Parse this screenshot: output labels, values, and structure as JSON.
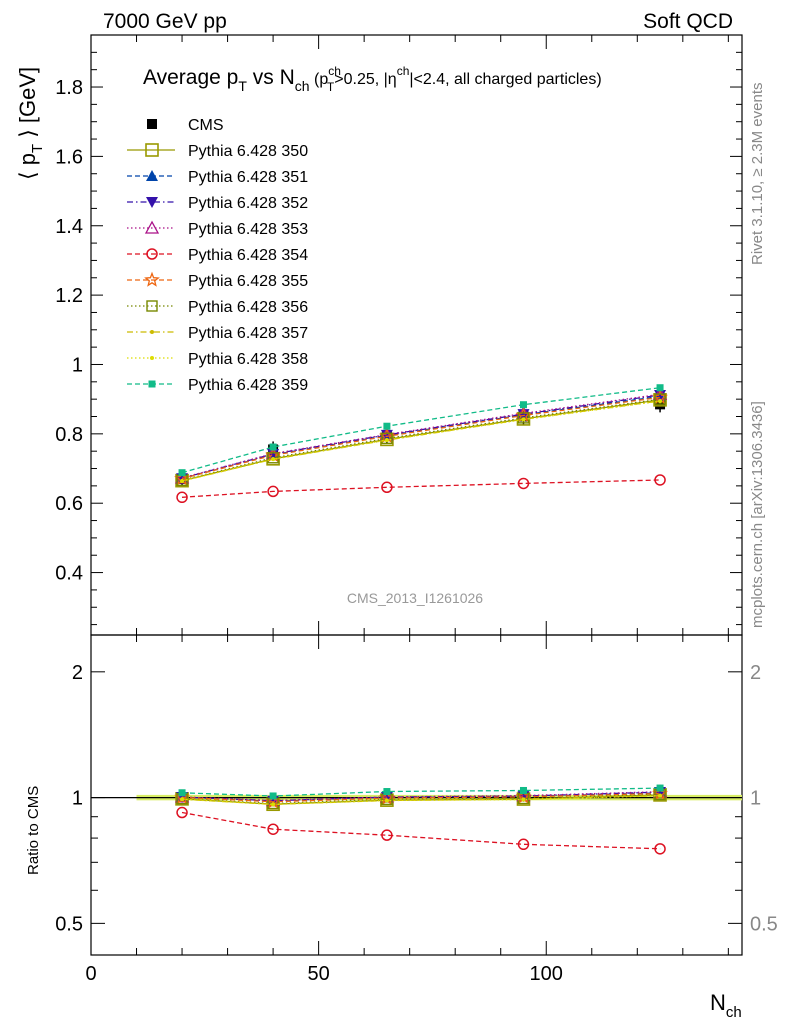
{
  "header": {
    "left": "7000 GeV pp",
    "right": "Soft QCD"
  },
  "side_labels": {
    "rivet": "Rivet 3.1.10, ≥ 2.3M events",
    "mcplots": "mcplots.cern.ch [arXiv:1306.3436]"
  },
  "analysis_id": "CMS_2013_I1261026",
  "title_parts": {
    "main": "Average p",
    "main_sub": "T",
    "vs": " vs N",
    "vs_sub": "ch",
    "cut_open": " (p",
    "cut_sup": "ch",
    "cut_sub": "T",
    "cut_mid": ">0.25, |η",
    "cut_sup2": "ch",
    "cut_end": "|<2.4, all charged particles)"
  },
  "ylabel_parts": {
    "open": "⟨ p",
    "sub": "T",
    "close": " ⟩ [GeV]"
  },
  "xlabel_parts": {
    "main": "N",
    "sub": "ch"
  },
  "ratio_ylabel": "Ratio to CMS",
  "colors": {
    "cms": "#000000",
    "p350": "#999900",
    "p351": "#0044aa",
    "p352": "#3311aa",
    "p353": "#aa1188",
    "p354": "#dd1122",
    "p355": "#ee6611",
    "p356": "#778800",
    "p357": "#ccbb00",
    "p358": "#dddd00",
    "p359": "#11bb88",
    "band": "#d8ee66"
  },
  "chart_data": [
    {
      "type": "line",
      "panel": "main",
      "ylim": [
        0.22,
        1.95
      ],
      "xlim": [
        0,
        143
      ],
      "yticks": [
        0.4,
        0.6,
        0.8,
        1.0,
        1.2,
        1.4,
        1.6,
        1.8
      ],
      "ytick_labels": [
        "0.4",
        "0.6",
        "0.8",
        "1",
        "1.2",
        "1.4",
        "1.6",
        "1.8"
      ],
      "x": [
        20,
        40,
        65,
        95,
        125
      ],
      "series": [
        {
          "name": "CMS",
          "key": "cms",
          "marker": "filled-square",
          "dash": "none",
          "values": [
            0.67,
            0.755,
            0.795,
            0.85,
            0.885
          ]
        },
        {
          "name": "Pythia 6.428 350",
          "key": "p350",
          "marker": "open-square",
          "dash": "solid",
          "values": [
            0.665,
            0.728,
            0.784,
            0.843,
            0.898
          ]
        },
        {
          "name": "Pythia 6.428 351",
          "key": "p351",
          "marker": "filled-triangle-up",
          "dash": "dash",
          "values": [
            0.671,
            0.74,
            0.795,
            0.855,
            0.908
          ]
        },
        {
          "name": "Pythia 6.428 352",
          "key": "p352",
          "marker": "filled-triangle-down",
          "dash": "dashdot",
          "values": [
            0.672,
            0.742,
            0.797,
            0.857,
            0.912
          ]
        },
        {
          "name": "Pythia 6.428 353",
          "key": "p353",
          "marker": "open-triangle-up",
          "dash": "dot",
          "values": [
            0.673,
            0.743,
            0.798,
            0.859,
            0.914
          ]
        },
        {
          "name": "Pythia 6.428 354",
          "key": "p354",
          "marker": "open-circle",
          "dash": "dash",
          "values": [
            0.617,
            0.634,
            0.646,
            0.657,
            0.667
          ]
        },
        {
          "name": "Pythia 6.428 355",
          "key": "p355",
          "marker": "open-star",
          "dash": "dash",
          "values": [
            0.671,
            0.738,
            0.793,
            0.853,
            0.905
          ]
        },
        {
          "name": "Pythia 6.428 356",
          "key": "p356",
          "marker": "open-square-small",
          "dash": "dot",
          "values": [
            0.666,
            0.731,
            0.787,
            0.846,
            0.9
          ]
        },
        {
          "name": "Pythia 6.428 357",
          "key": "p357",
          "marker": "small-dot",
          "dash": "dashdot",
          "values": [
            0.664,
            0.727,
            0.782,
            0.842,
            0.895
          ]
        },
        {
          "name": "Pythia 6.428 358",
          "key": "p358",
          "marker": "small-dot",
          "dash": "dot",
          "values": [
            0.664,
            0.727,
            0.782,
            0.841,
            0.894
          ]
        },
        {
          "name": "Pythia 6.428 359",
          "key": "p359",
          "marker": "filled-square-small",
          "dash": "dash",
          "values": [
            0.688,
            0.762,
            0.822,
            0.884,
            0.933
          ]
        }
      ]
    },
    {
      "type": "line",
      "panel": "ratio",
      "ylabel": "Ratio to CMS",
      "ylim": [
        0.42,
        2.45
      ],
      "yscale": "log",
      "xlim": [
        0,
        143
      ],
      "yticks": [
        0.5,
        1,
        2
      ],
      "ytick_labels": [
        "0.5",
        "1",
        "2"
      ],
      "xticks": [
        0,
        50,
        100
      ],
      "xtick_labels": [
        "0",
        "50",
        "100"
      ],
      "band": {
        "x": [
          10,
          143
        ],
        "low": 0.985,
        "high": 1.015
      },
      "x": [
        20,
        40,
        65,
        95,
        125
      ],
      "series": [
        {
          "key": "p350",
          "values": [
            0.993,
            0.964,
            0.986,
            0.992,
            1.015
          ]
        },
        {
          "key": "p351",
          "values": [
            1.001,
            0.98,
            1.0,
            1.006,
            1.026
          ]
        },
        {
          "key": "p352",
          "values": [
            1.003,
            0.983,
            1.003,
            1.008,
            1.031
          ]
        },
        {
          "key": "p353",
          "values": [
            1.004,
            0.984,
            1.004,
            1.011,
            1.033
          ]
        },
        {
          "key": "p354",
          "values": [
            0.921,
            0.84,
            0.813,
            0.773,
            0.754
          ]
        },
        {
          "key": "p355",
          "values": [
            1.001,
            0.977,
            0.997,
            1.004,
            1.023
          ]
        },
        {
          "key": "p356",
          "values": [
            0.994,
            0.968,
            0.99,
            0.995,
            1.017
          ]
        },
        {
          "key": "p357",
          "values": [
            0.991,
            0.963,
            0.984,
            0.991,
            1.011
          ]
        },
        {
          "key": "p358",
          "values": [
            0.991,
            0.963,
            0.984,
            0.989,
            1.01
          ]
        },
        {
          "key": "p359",
          "values": [
            1.027,
            1.009,
            1.034,
            1.04,
            1.054
          ]
        }
      ]
    }
  ]
}
